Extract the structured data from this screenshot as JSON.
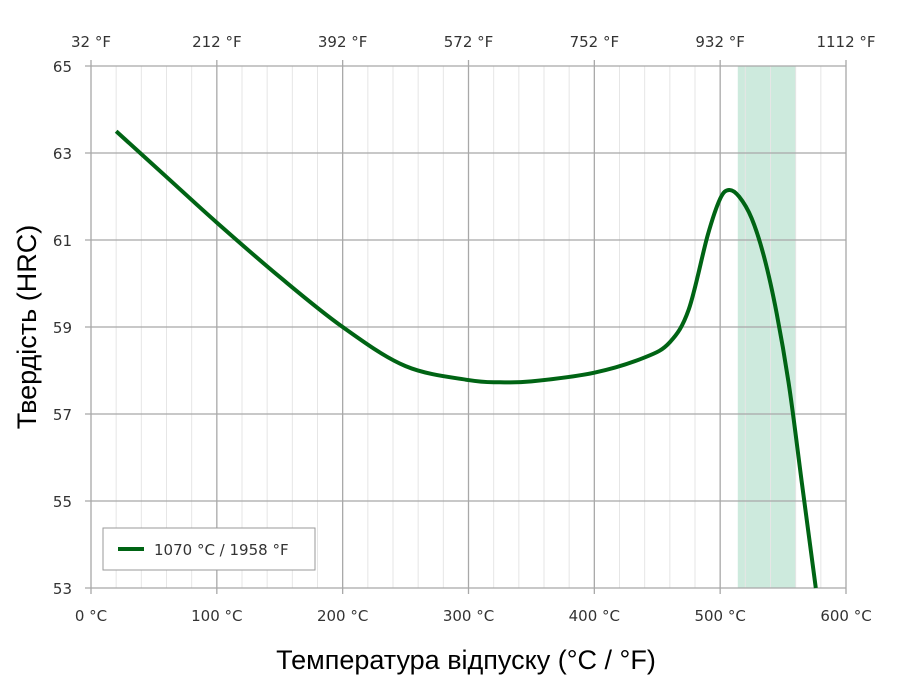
{
  "chart_data": {
    "type": "line",
    "title": "",
    "xlabel": "Температура відпуску (°C / °F)",
    "ylabel": "Твердість (HRC)",
    "xlim": [
      0,
      600
    ],
    "ylim": [
      53,
      65
    ],
    "x_ticks": [
      "0 °C",
      "100 °C",
      "200 °C",
      "300 °C",
      "400 °C",
      "500 °C",
      "600 °C"
    ],
    "x_tick_values": [
      0,
      100,
      200,
      300,
      400,
      500,
      600
    ],
    "x2_ticks": [
      "32 °F",
      "212 °F",
      "392 °F",
      "572 °F",
      "752 °F",
      "932 °F",
      "1112 °F"
    ],
    "y_ticks": [
      "53",
      "55",
      "57",
      "59",
      "61",
      "63",
      "65"
    ],
    "y_tick_values": [
      53,
      55,
      57,
      59,
      61,
      63,
      65
    ],
    "grid": true,
    "minor_grid_x_step": 20,
    "legend_position": "lower-left",
    "highlight_band": {
      "x_start": 514,
      "x_end": 560,
      "color": "#cdeadd"
    },
    "series": [
      {
        "name": "1070 °C / 1958 °F",
        "color": "#006414",
        "x": [
          20,
          60,
          100,
          150,
          200,
          250,
          300,
          325,
          350,
          400,
          440,
          460,
          475,
          490,
          500,
          507,
          515,
          525,
          535,
          545,
          555,
          565,
          576
        ],
        "y": [
          63.5,
          62.45,
          61.4,
          60.15,
          59.0,
          58.1,
          57.78,
          57.73,
          57.75,
          57.95,
          58.3,
          58.65,
          59.4,
          61.1,
          61.95,
          62.15,
          62.0,
          61.5,
          60.6,
          59.3,
          57.6,
          55.4,
          53.0
        ]
      }
    ]
  },
  "legend": {
    "label": "1070 °C / 1958 °F"
  }
}
